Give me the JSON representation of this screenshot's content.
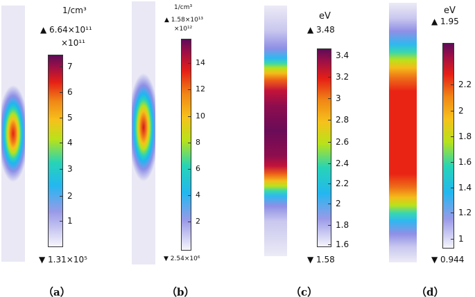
{
  "panels": [
    {
      "id": "a",
      "unit": "1/cm³",
      "max_label": "▲ 6.64×10¹¹",
      "multiplier": "×10¹¹",
      "ticks": [
        "1",
        "2",
        "3",
        "4",
        "5",
        "6",
        "7"
      ],
      "min_label": "▼ 1.31×10⁵",
      "caption": "（a）"
    },
    {
      "id": "b",
      "unit": "1/cm³",
      "max_label": "▲ 1.58×10¹³",
      "multiplier": "×10¹²",
      "ticks": [
        "2",
        "4",
        "6",
        "8",
        "10",
        "12",
        "14"
      ],
      "min_label": "▼ 2.54×10⁶",
      "caption": "（b）"
    },
    {
      "id": "c",
      "unit": "eV",
      "max_label": "▲ 3.48",
      "multiplier": "",
      "ticks": [
        "1.6",
        "1.8",
        "2",
        "2.2",
        "2.4",
        "2.6",
        "2.8",
        "3",
        "3.2",
        "3.4"
      ],
      "min_label": "▼ 1.58",
      "caption": "（c）"
    },
    {
      "id": "d",
      "unit": "eV",
      "max_label": "▲ 1.95",
      "multiplier": "",
      "ticks": [
        "1",
        "1.2",
        "1.4",
        "1.6",
        "1.8",
        "2",
        "2.2"
      ],
      "min_label": "▼ 0.944",
      "caption": "（d）"
    }
  ],
  "colormap": [
    "#f4f2fb",
    "#8f8fe6",
    "#1fb6f2",
    "#27d6b3",
    "#b8e21a",
    "#f7c21a",
    "#f08a16",
    "#ea2415",
    "#b3103d",
    "#640c58"
  ]
}
